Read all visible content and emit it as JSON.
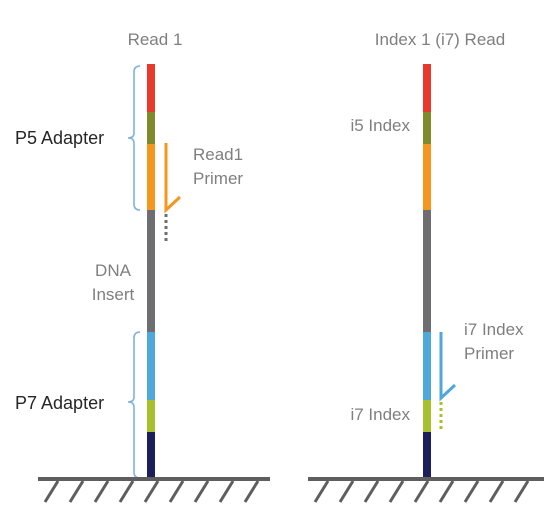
{
  "colors": {
    "red": "#e8392b",
    "olive": "#7f8a2c",
    "orange": "#f5961f",
    "gray": "#6e6e70",
    "blue": "#4fa7dc",
    "lime": "#a8bf2e",
    "navy": "#1b1e5a",
    "bracket": "#7fb2dd",
    "primer_orange": "#f5961f",
    "primer_blue": "#4fa7dc",
    "ground": "#5e5e5e"
  },
  "panels": {
    "read1": {
      "title": "Read 1",
      "p5_label": "P5 Adapter",
      "primer_label_line1": "Read1",
      "primer_label_line2": "Primer",
      "insert_label_line1": "DNA",
      "insert_label_line2": "Insert",
      "p7_label": "P7 Adapter"
    },
    "index1": {
      "title": "Index 1 (i7) Read",
      "i5_label": "i5 Index",
      "primer_label_line1": "i7 Index",
      "primer_label_line2": "Primer",
      "i7_label": "i7 Index"
    }
  },
  "segments": [
    {
      "name": "p5-red",
      "color_key": "red"
    },
    {
      "name": "i5-index",
      "color_key": "olive"
    },
    {
      "name": "read1-primer-site",
      "color_key": "orange"
    },
    {
      "name": "dna-insert",
      "color_key": "gray"
    },
    {
      "name": "i7-primer-site",
      "color_key": "blue"
    },
    {
      "name": "i7-index",
      "color_key": "lime"
    },
    {
      "name": "p7-navy",
      "color_key": "navy"
    }
  ]
}
